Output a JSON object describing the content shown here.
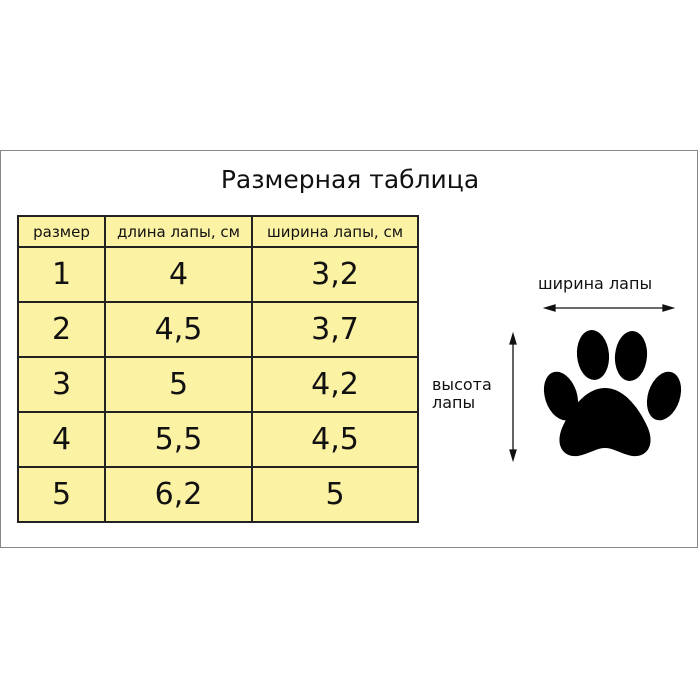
{
  "title": "Размерная таблица",
  "table": {
    "headers": [
      "размер",
      "длина лапы, см",
      "ширина лапы, см"
    ],
    "rows": [
      [
        "1",
        "4",
        "3,2"
      ],
      [
        "2",
        "4,5",
        "3,7"
      ],
      [
        "3",
        "5",
        "4,2"
      ],
      [
        "4",
        "5,5",
        "4,5"
      ],
      [
        "5",
        "6,2",
        "5"
      ]
    ]
  },
  "diagram": {
    "width_label": "ширина лапы",
    "height_label_1": "высота",
    "height_label_2": "лапы"
  },
  "colors": {
    "table_bg": "#fcf2a4",
    "paw": "#000000"
  }
}
